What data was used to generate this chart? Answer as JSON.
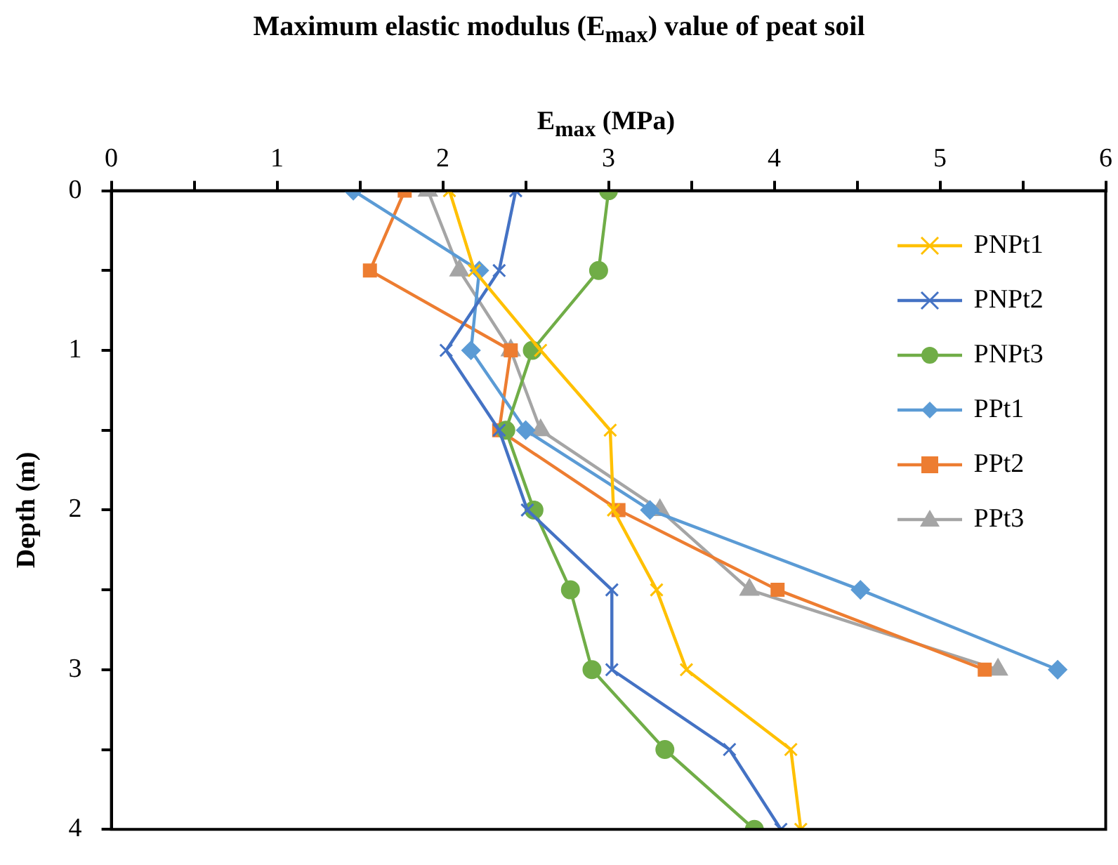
{
  "chart_data": {
    "type": "line",
    "title": "Maximum elastic modulus (E$_{max}$) value of peat soil",
    "xlabel": "E$_{max}$ (MPa)",
    "ylabel": "Depth (m)",
    "xlim": [
      0,
      6
    ],
    "xticks": [
      0,
      {
        "value": 0.5,
        "label": null
      },
      1,
      {
        "value": 1.5,
        "label": null
      },
      2,
      {
        "value": 2.5,
        "label": null
      },
      3,
      {
        "value": 3.5,
        "label": null
      },
      4,
      {
        "value": 4.5,
        "label": null
      },
      5,
      {
        "value": 5.5,
        "label": null
      },
      6
    ],
    "ylim": [
      4,
      0
    ],
    "yticks": [
      0,
      {
        "value": 0.5,
        "label": null
      },
      1,
      {
        "value": 1.5,
        "label": null
      },
      2,
      {
        "value": 2.5,
        "label": null
      },
      3,
      {
        "value": 3.5,
        "label": null
      },
      4
    ],
    "grid": false,
    "legend": "top right",
    "series": [
      {
        "name": "PNPt1",
        "color": "#ffc000",
        "marker": "cross",
        "x": [
          2.04,
          2.19,
          2.59,
          3.01,
          3.03,
          3.29,
          3.47,
          4.1,
          4.16
        ],
        "values": [
          0,
          0.5,
          1,
          1.5,
          2,
          2.5,
          3,
          3.5,
          4
        ]
      },
      {
        "name": "PNPt2",
        "color": "#4472c4",
        "marker": "cross",
        "x": [
          2.44,
          2.34,
          2.02,
          2.34,
          2.51,
          3.02,
          3.02,
          3.73,
          4.04
        ],
        "values": [
          0,
          0.5,
          1,
          1.5,
          2,
          2.5,
          3,
          3.5,
          4
        ]
      },
      {
        "name": "PNPt3",
        "color": "#70ad47",
        "marker": "circle",
        "x": [
          3.0,
          2.94,
          2.54,
          2.38,
          2.55,
          2.77,
          2.9,
          3.34,
          3.88
        ],
        "values": [
          0,
          0.5,
          1,
          1.5,
          2,
          2.5,
          3,
          3.5,
          4
        ]
      },
      {
        "name": "PPt1",
        "color": "#5b9bd5",
        "marker": "diamond",
        "x": [
          1.46,
          2.22,
          2.17,
          2.5,
          3.25,
          4.52,
          5.71
        ],
        "values": [
          0,
          0.5,
          1,
          1.5,
          2,
          2.5,
          3
        ]
      },
      {
        "name": "PPt2",
        "color": "#ed7d31",
        "marker": "square",
        "x": [
          1.77,
          1.56,
          2.41,
          2.34,
          3.06,
          4.02,
          5.27
        ],
        "values": [
          0,
          0.5,
          1,
          1.5,
          2,
          2.5,
          3
        ]
      },
      {
        "name": "PPt3",
        "color": "#a5a5a5",
        "marker": "triangle",
        "x": [
          1.91,
          2.1,
          2.41,
          2.59,
          3.31,
          3.85,
          5.35
        ],
        "values": [
          0,
          0.5,
          1,
          1.5,
          2,
          2.5,
          3
        ]
      }
    ]
  }
}
